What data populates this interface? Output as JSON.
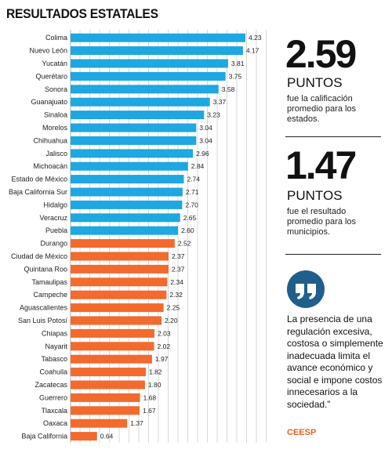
{
  "chart_data": {
    "type": "bar",
    "orientation": "horizontal",
    "title": "RESULTADOS ESTATALES",
    "grid": true,
    "categories": [
      "Colima",
      "Nuevo León",
      "Yucatán",
      "Querétaro",
      "Sonora",
      "Guanajuato",
      "Sinaloa",
      "Morelos",
      "Chihuahua",
      "Jalisco",
      "Michoacán",
      "Estado de México",
      "Baja California Sur",
      "Hidalgo",
      "Veracruz",
      "Puebla",
      "Durango",
      "Ciudad de México",
      "Quintana Roo",
      "Tamaulipas",
      "Campeche",
      "Aguascalientes",
      "San Luis Potosí",
      "Chiapas",
      "Nayarit",
      "Tabasco",
      "Coahuila",
      "Zacatecas",
      "Guerrero",
      "Tlaxcala",
      "Oaxaca",
      "Baja California"
    ],
    "values": [
      4.23,
      4.17,
      3.81,
      3.75,
      3.58,
      3.37,
      3.23,
      3.04,
      3.04,
      2.96,
      2.84,
      2.74,
      2.71,
      2.7,
      2.65,
      2.6,
      2.52,
      2.37,
      2.37,
      2.34,
      2.32,
      2.25,
      2.2,
      2.03,
      2.02,
      1.97,
      1.82,
      1.8,
      1.68,
      1.67,
      1.37,
      0.64
    ],
    "value_labels": [
      "4.23",
      "4.17",
      "3.81",
      "3.75",
      "3.58",
      "3.37",
      "3.23",
      "3.04",
      "3.04",
      "2.96",
      "2.84",
      "2.74",
      "2.71",
      "2.70",
      "2.65",
      "2.60",
      "2.52",
      "2.37",
      "2.37",
      "2.34",
      "2.32",
      "2.25",
      "2.20",
      "2.03",
      "2.02",
      "1.97",
      "1.82",
      "1.80",
      "1.68",
      "1.67",
      "1.37",
      "0.64"
    ],
    "colors": {
      "above_average": "#1ea7e0",
      "below_average": "#f26a2e",
      "grid": "#c8c8c8"
    },
    "color_split_after_index": 15,
    "xlim": [
      0,
      4.4
    ]
  },
  "stats": [
    {
      "number": "2.59",
      "unit": "PUNTOS",
      "description": "fue la calificación promedio para los estados."
    },
    {
      "number": "1.47",
      "unit": "PUNTOS",
      "description": "fue el resultado promedio para los municipios."
    }
  ],
  "quote": {
    "icon": "quote-icon",
    "text": "La presencia de una regulación excesiva, costosa o simplemente inadecuada limita el avance económico y social e impone costos innecesarios a la sociedad.”",
    "source": "CEESP",
    "badge_color": "#1f5f8b",
    "source_color": "#e8612a"
  }
}
